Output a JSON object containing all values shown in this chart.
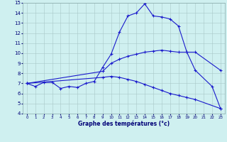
{
  "xlabel": "Graphe des températures (°c)",
  "xlim": [
    -0.5,
    23.5
  ],
  "ylim": [
    4,
    15
  ],
  "yticks": [
    4,
    5,
    6,
    7,
    8,
    9,
    10,
    11,
    12,
    13,
    14,
    15
  ],
  "xticks": [
    0,
    1,
    2,
    3,
    4,
    5,
    6,
    7,
    8,
    9,
    10,
    11,
    12,
    13,
    14,
    15,
    16,
    17,
    18,
    19,
    20,
    21,
    22,
    23
  ],
  "background_color": "#cff0f0",
  "line_color": "#1a1acc",
  "grid_color": "#a8c8c8",
  "line1_x": [
    0,
    1,
    2,
    3,
    4,
    5,
    6,
    7,
    8,
    9,
    10,
    11,
    12,
    13,
    14,
    15,
    16,
    17,
    18,
    19,
    20,
    22,
    23
  ],
  "line1_y": [
    7.0,
    6.7,
    7.1,
    7.1,
    6.5,
    6.7,
    6.6,
    7.0,
    7.2,
    8.6,
    9.9,
    12.1,
    13.7,
    14.0,
    14.9,
    13.7,
    13.6,
    13.4,
    12.7,
    10.1,
    8.3,
    6.7,
    4.5
  ],
  "line2_x": [
    0,
    9,
    10,
    11,
    12,
    13,
    14,
    15,
    16,
    17,
    18,
    19,
    20,
    23
  ],
  "line2_y": [
    7.0,
    8.2,
    9.0,
    9.4,
    9.7,
    9.9,
    10.1,
    10.2,
    10.3,
    10.2,
    10.1,
    10.1,
    10.1,
    8.3
  ],
  "line3_x": [
    0,
    9,
    10,
    11,
    12,
    13,
    14,
    15,
    16,
    17,
    18,
    19,
    20,
    23
  ],
  "line3_y": [
    7.0,
    7.6,
    7.7,
    7.6,
    7.4,
    7.2,
    6.9,
    6.6,
    6.3,
    6.0,
    5.8,
    5.6,
    5.4,
    4.5
  ]
}
